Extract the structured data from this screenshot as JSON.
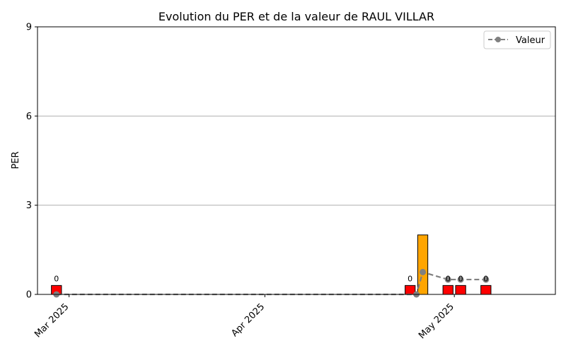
{
  "chart_data": {
    "type": "bar",
    "title": "Evolution du PER et de la valeur de RAUL VILLAR",
    "xlabel": "",
    "ylabel": "PER",
    "ylim": [
      0,
      9
    ],
    "yticks": [
      0,
      3,
      6,
      9
    ],
    "x_axis": "date",
    "xlim": [
      "2025-02-24",
      "2025-05-17"
    ],
    "xticks": [
      {
        "date": "2025-03-01",
        "label": "Mar 2025"
      },
      {
        "date": "2025-04-01",
        "label": "Apr 2025"
      },
      {
        "date": "2025-05-01",
        "label": "May 2025"
      }
    ],
    "grid": "horizontal",
    "legend_position": "top-right",
    "bars": [
      {
        "date": "2025-02-27",
        "value": 0.3,
        "color": "#ff0000",
        "label": "0"
      },
      {
        "date": "2025-04-24",
        "value": 0.3,
        "color": "#ff0000",
        "label": "0"
      },
      {
        "date": "2025-04-26",
        "value": 2.0,
        "color": "#ffa500",
        "label": ""
      },
      {
        "date": "2025-04-30",
        "value": 0.3,
        "color": "#ff0000",
        "label": "0"
      },
      {
        "date": "2025-05-02",
        "value": 0.3,
        "color": "#ff0000",
        "label": "0"
      },
      {
        "date": "2025-05-06",
        "value": 0.3,
        "color": "#ff0000",
        "label": "0"
      }
    ],
    "series": [
      {
        "name": "Valeur",
        "color": "#808080",
        "points": [
          {
            "date": "2025-02-27",
            "value": 0.0
          },
          {
            "date": "2025-04-25",
            "value": 0.0
          },
          {
            "date": "2025-04-26",
            "value": 0.75
          },
          {
            "date": "2025-04-30",
            "value": 0.5
          },
          {
            "date": "2025-05-02",
            "value": 0.5
          },
          {
            "date": "2025-05-06",
            "value": 0.5
          }
        ]
      }
    ]
  }
}
